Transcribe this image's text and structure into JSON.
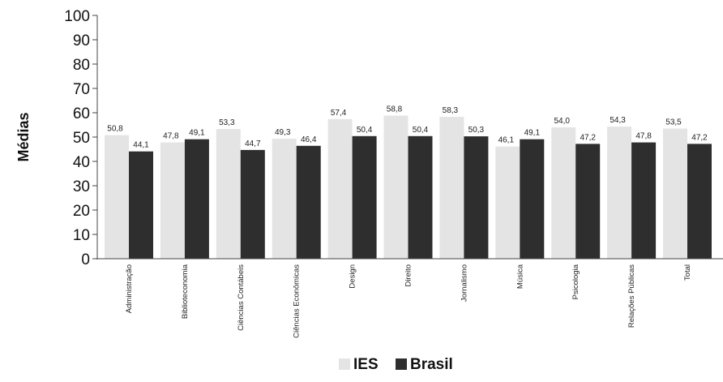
{
  "chart_data": {
    "type": "bar",
    "title": "",
    "xlabel": "",
    "ylabel": "Médias",
    "ylim": [
      0,
      100
    ],
    "yticks": [
      0,
      10,
      20,
      30,
      40,
      50,
      60,
      70,
      80,
      90,
      100
    ],
    "categories": [
      "Administração",
      "Biblioteconomia",
      "Ciências Contábeis",
      "Ciências Econômicas",
      "Design",
      "Direito",
      "Jornalismo",
      "Música",
      "Psicologia",
      "Relações Públicas",
      "Total"
    ],
    "series": [
      {
        "name": "IES",
        "color": "#e4e4e4",
        "values": [
          50.8,
          47.8,
          53.3,
          49.3,
          57.4,
          58.8,
          58.3,
          46.1,
          54.0,
          54.3,
          53.5
        ],
        "labels": [
          "50,8",
          "47,8",
          "53,3",
          "49,3",
          "57,4",
          "58,8",
          "58,3",
          "46,1",
          "54,0",
          "54,3",
          "53,5"
        ]
      },
      {
        "name": "Brasil",
        "color": "#2e2e2e",
        "values": [
          44.1,
          49.1,
          44.7,
          46.4,
          50.4,
          50.4,
          50.3,
          49.1,
          47.2,
          47.8,
          47.2
        ],
        "labels": [
          "44,1",
          "49,1",
          "44,7",
          "46,4",
          "50,4",
          "50,4",
          "50,3",
          "49,1",
          "47,2",
          "47,8",
          "47,2"
        ]
      }
    ],
    "grid": false,
    "legend": "bottom-center"
  }
}
